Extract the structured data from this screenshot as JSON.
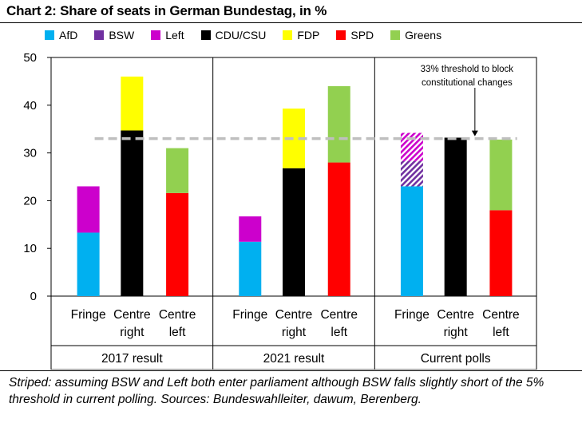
{
  "chart_data": {
    "type": "bar",
    "stacked": true,
    "title": "Chart 2: Share of seats in German Bundestag, in %",
    "ylim": [
      0,
      50
    ],
    "yticks": [
      0,
      10,
      20,
      30,
      40,
      50
    ],
    "grid": false,
    "legend_position": "top",
    "series": [
      {
        "name": "AfD",
        "color": "#00B0F0"
      },
      {
        "name": "BSW",
        "color": "#7030A0"
      },
      {
        "name": "Left",
        "color": "#CC00CC"
      },
      {
        "name": "CDU/CSU",
        "color": "#000000"
      },
      {
        "name": "FDP",
        "color": "#FFFF00"
      },
      {
        "name": "SPD",
        "color": "#FF0000"
      },
      {
        "name": "Greens",
        "color": "#92D050"
      }
    ],
    "groups": [
      {
        "label": "2017 result",
        "bars": [
          {
            "label": [
              "Fringe"
            ],
            "segments": [
              {
                "series": "AfD",
                "value": 13.3
              },
              {
                "series": "Left",
                "value": 9.7
              }
            ]
          },
          {
            "label": [
              "Centre",
              "right"
            ],
            "segments": [
              {
                "series": "CDU/CSU",
                "value": 34.7
              },
              {
                "series": "FDP",
                "value": 11.3
              }
            ]
          },
          {
            "label": [
              "Centre",
              "left"
            ],
            "segments": [
              {
                "series": "SPD",
                "value": 21.6
              },
              {
                "series": "Greens",
                "value": 9.4
              }
            ]
          }
        ]
      },
      {
        "label": "2021 result",
        "bars": [
          {
            "label": [
              "Fringe"
            ],
            "segments": [
              {
                "series": "AfD",
                "value": 11.4
              },
              {
                "series": "Left",
                "value": 5.3
              }
            ]
          },
          {
            "label": [
              "Centre",
              "right"
            ],
            "segments": [
              {
                "series": "CDU/CSU",
                "value": 26.8
              },
              {
                "series": "FDP",
                "value": 12.5
              }
            ]
          },
          {
            "label": [
              "Centre",
              "left"
            ],
            "segments": [
              {
                "series": "SPD",
                "value": 28.0
              },
              {
                "series": "Greens",
                "value": 16.0
              }
            ]
          }
        ]
      },
      {
        "label": "Current polls",
        "bars": [
          {
            "label": [
              "Fringe"
            ],
            "segments": [
              {
                "series": "AfD",
                "value": 23.0
              },
              {
                "series": "BSW",
                "value": 5.3,
                "striped": true
              },
              {
                "series": "Left",
                "value": 5.9,
                "striped": true
              }
            ]
          },
          {
            "label": [
              "Centre",
              "right"
            ],
            "segments": [
              {
                "series": "CDU/CSU",
                "value": 33.2
              }
            ]
          },
          {
            "label": [
              "Centre",
              "left"
            ],
            "segments": [
              {
                "series": "SPD",
                "value": 18.0
              },
              {
                "series": "Greens",
                "value": 14.8
              }
            ]
          }
        ]
      }
    ],
    "threshold": {
      "value": 33,
      "style": "dashed",
      "color": "#BFBFBF"
    },
    "annotation": [
      "33% threshold to block",
      "constitutional changes"
    ]
  },
  "footnote": "Striped: assuming BSW and Left both enter parliament although BSW falls slightly short of the 5% threshold in current polling. Sources: Bundeswahlleiter, dawum, Berenberg."
}
